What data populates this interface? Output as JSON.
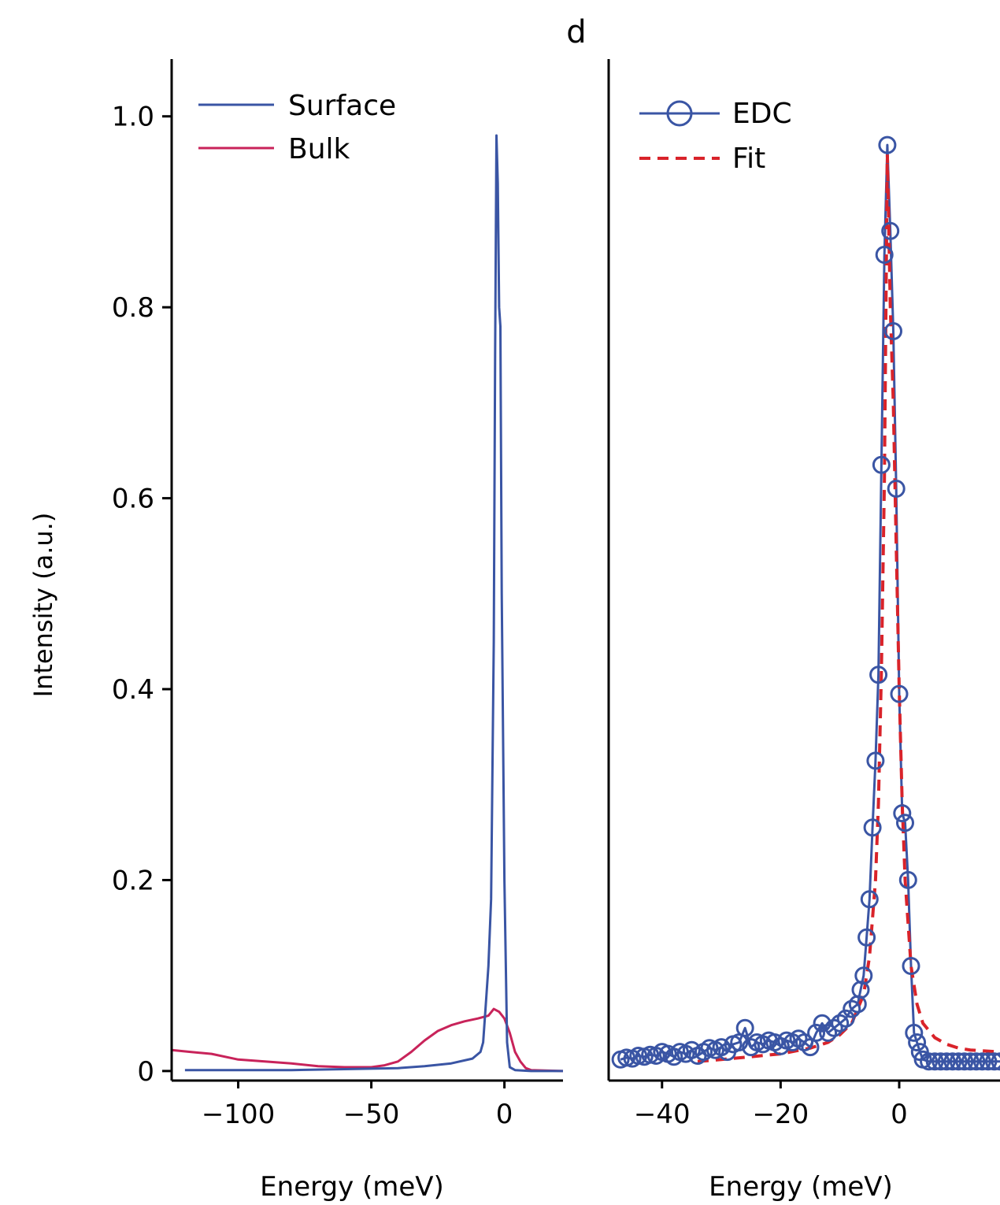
{
  "figure": {
    "panel_label": "d"
  },
  "chart_data": [
    {
      "type": "line",
      "xlabel": "Energy (meV)",
      "ylabel": "Intensity (a.u.)",
      "xlim": [
        -125,
        22
      ],
      "ylim": [
        -0.01,
        1.06
      ],
      "xticks": [
        -100,
        -50,
        0
      ],
      "xtick_labels": [
        "−100",
        "−50",
        "0"
      ],
      "yticks": [
        0,
        0.2,
        0.4,
        0.6,
        0.8,
        1.0
      ],
      "ytick_labels": [
        "0",
        "0.2",
        "0.4",
        "0.6",
        "0.8",
        "1.0"
      ],
      "legend_position": "top-left",
      "grid": false,
      "series": [
        {
          "name": "Surface",
          "color": "#3a55a4",
          "style": "solid",
          "points": [
            [
              -120,
              0.001
            ],
            [
              -100,
              0.001
            ],
            [
              -80,
              0.001
            ],
            [
              -60,
              0.002
            ],
            [
              -40,
              0.003
            ],
            [
              -30,
              0.005
            ],
            [
              -20,
              0.008
            ],
            [
              -12,
              0.013
            ],
            [
              -9,
              0.02
            ],
            [
              -8,
              0.03
            ],
            [
              -7,
              0.07
            ],
            [
              -6,
              0.11
            ],
            [
              -5,
              0.18
            ],
            [
              -4,
              0.45
            ],
            [
              -3.5,
              0.75
            ],
            [
              -3,
              0.98
            ],
            [
              -2.5,
              0.93
            ],
            [
              -2,
              0.8
            ],
            [
              -1.5,
              0.78
            ],
            [
              -1,
              0.5
            ],
            [
              0,
              0.2
            ],
            [
              1,
              0.03
            ],
            [
              2,
              0.004
            ],
            [
              4,
              0.001
            ],
            [
              10,
              0.0
            ],
            [
              22,
              0.0
            ]
          ]
        },
        {
          "name": "Bulk",
          "color": "#c8235a",
          "style": "solid",
          "points": [
            [
              -125,
              0.022
            ],
            [
              -118,
              0.02
            ],
            [
              -110,
              0.018
            ],
            [
              -100,
              0.012
            ],
            [
              -90,
              0.01
            ],
            [
              -80,
              0.008
            ],
            [
              -70,
              0.005
            ],
            [
              -60,
              0.004
            ],
            [
              -50,
              0.004
            ],
            [
              -45,
              0.006
            ],
            [
              -40,
              0.01
            ],
            [
              -35,
              0.02
            ],
            [
              -30,
              0.032
            ],
            [
              -25,
              0.042
            ],
            [
              -20,
              0.048
            ],
            [
              -15,
              0.052
            ],
            [
              -10,
              0.055
            ],
            [
              -6,
              0.058
            ],
            [
              -4,
              0.065
            ],
            [
              -2,
              0.062
            ],
            [
              0,
              0.055
            ],
            [
              2,
              0.04
            ],
            [
              4,
              0.02
            ],
            [
              6,
              0.01
            ],
            [
              8,
              0.003
            ],
            [
              10,
              0.001
            ],
            [
              22,
              0.0
            ]
          ]
        }
      ]
    },
    {
      "type": "line",
      "xlabel": "Energy (meV)",
      "ylabel": "",
      "xlim": [
        -49,
        17
      ],
      "ylim": [
        -0.01,
        1.06
      ],
      "xticks": [
        -40,
        -20,
        0
      ],
      "xtick_labels": [
        "−40",
        "−20",
        "0"
      ],
      "yticks": [],
      "legend_position": "top-left",
      "grid": false,
      "series": [
        {
          "name": "EDC",
          "color": "#3a55a4",
          "style": "solid",
          "marker": "circle",
          "x": [
            -47,
            -46,
            -45,
            -44,
            -43,
            -42,
            -41,
            -40,
            -39,
            -38,
            -37,
            -36,
            -35,
            -34,
            -33,
            -32,
            -31,
            -30,
            -29,
            -28,
            -27,
            -26,
            -25,
            -24,
            -23,
            -22,
            -21,
            -20,
            -19,
            -18,
            -17,
            -16,
            -15,
            -14,
            -13,
            -12,
            -11,
            -10,
            -9,
            -8,
            -7,
            -6.5,
            -6,
            -5.5,
            -5,
            -4.5,
            -4,
            -3.5,
            -3,
            -2.5,
            -2,
            -1.5,
            -1,
            -0.5,
            0,
            0.5,
            1,
            1.5,
            2,
            2.5,
            3,
            3.5,
            4,
            5,
            6,
            7,
            8,
            9,
            10,
            11,
            12,
            13,
            14,
            15,
            16,
            17
          ],
          "values": [
            0.012,
            0.014,
            0.013,
            0.016,
            0.015,
            0.017,
            0.016,
            0.02,
            0.018,
            0.015,
            0.02,
            0.018,
            0.022,
            0.016,
            0.02,
            0.024,
            0.022,
            0.025,
            0.02,
            0.028,
            0.03,
            0.045,
            0.025,
            0.03,
            0.028,
            0.032,
            0.03,
            0.026,
            0.032,
            0.03,
            0.034,
            0.03,
            0.025,
            0.04,
            0.05,
            0.04,
            0.045,
            0.05,
            0.055,
            0.065,
            0.07,
            0.085,
            0.1,
            0.14,
            0.18,
            0.255,
            0.325,
            0.415,
            0.635,
            0.855,
            0.97,
            0.88,
            0.775,
            0.61,
            0.395,
            0.27,
            0.26,
            0.2,
            0.11,
            0.04,
            0.03,
            0.02,
            0.012,
            0.01,
            0.01,
            0.01,
            0.01,
            0.01,
            0.01,
            0.01,
            0.01,
            0.01,
            0.01,
            0.01,
            0.01,
            0.01
          ]
        },
        {
          "name": "Fit",
          "color": "#d9232a",
          "style": "dashed",
          "x": [
            -34,
            -30,
            -25,
            -20,
            -15,
            -12,
            -10,
            -8,
            -6,
            -5,
            -4,
            -3.5,
            -3,
            -2.5,
            -2,
            -1.5,
            -1,
            -0.5,
            0,
            0.5,
            1,
            2,
            3,
            4,
            6,
            8,
            10,
            12,
            17
          ],
          "values": [
            0.01,
            0.012,
            0.015,
            0.018,
            0.024,
            0.03,
            0.038,
            0.05,
            0.08,
            0.12,
            0.2,
            0.28,
            0.42,
            0.62,
            0.96,
            0.8,
            0.7,
            0.55,
            0.4,
            0.28,
            0.2,
            0.11,
            0.07,
            0.05,
            0.035,
            0.028,
            0.024,
            0.022,
            0.02
          ]
        }
      ]
    }
  ]
}
